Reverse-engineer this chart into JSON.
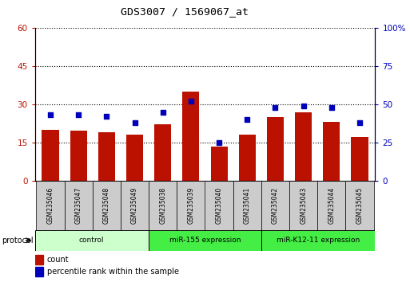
{
  "title": "GDS3007 / 1569067_at",
  "samples": [
    "GSM235046",
    "GSM235047",
    "GSM235048",
    "GSM235049",
    "GSM235038",
    "GSM235039",
    "GSM235040",
    "GSM235041",
    "GSM235042",
    "GSM235043",
    "GSM235044",
    "GSM235045"
  ],
  "counts": [
    20,
    19.5,
    19,
    18,
    22,
    35,
    13.5,
    18,
    25,
    27,
    23,
    17
  ],
  "percentile_ranks": [
    43,
    43,
    42,
    38,
    45,
    52,
    25,
    40,
    48,
    49,
    48,
    38
  ],
  "groups": [
    {
      "label": "control",
      "start": 0,
      "end": 4,
      "color": "#ccffcc"
    },
    {
      "label": "miR-155 expression",
      "start": 4,
      "end": 8,
      "color": "#44ee44"
    },
    {
      "label": "miR-K12-11 expression",
      "start": 8,
      "end": 12,
      "color": "#44ee44"
    }
  ],
  "left_ylim": [
    0,
    60
  ],
  "right_ylim": [
    0,
    100
  ],
  "left_yticks": [
    0,
    15,
    30,
    45,
    60
  ],
  "right_yticks": [
    0,
    25,
    50,
    75,
    100
  ],
  "bar_color": "#bb1100",
  "dot_color": "#0000bb",
  "label_box_color": "#cccccc",
  "bg_color": "#ffffff"
}
